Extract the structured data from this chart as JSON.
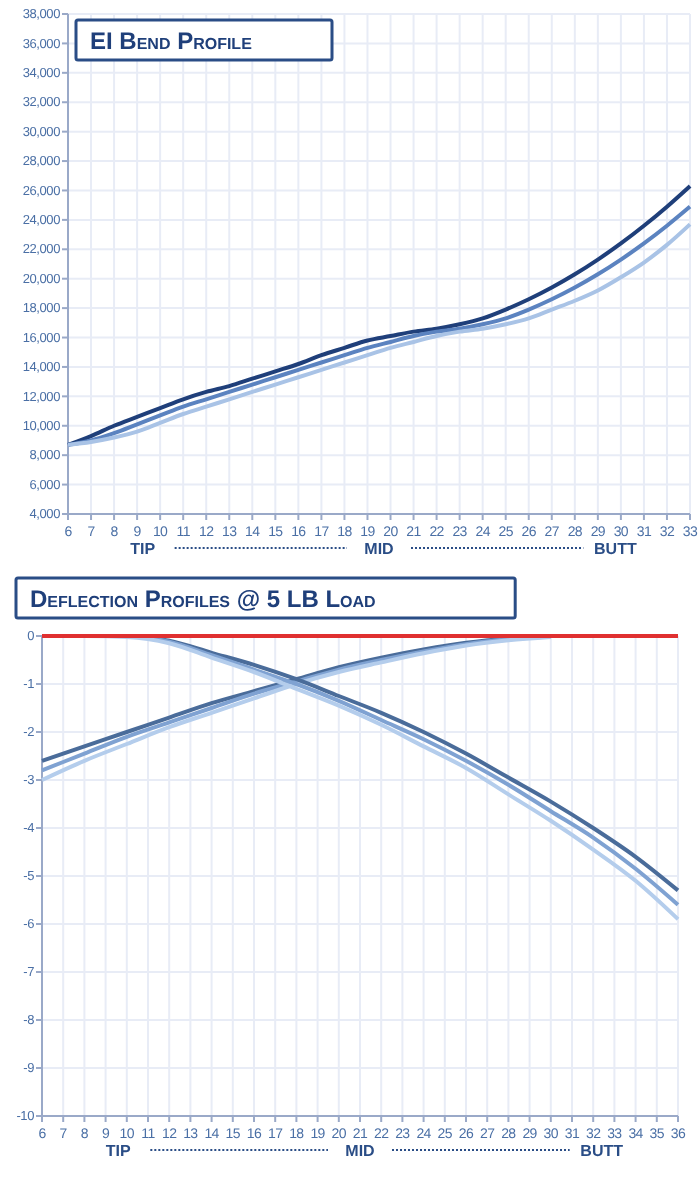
{
  "chart_data": [
    {
      "type": "line",
      "title": "EI Bend Profile",
      "x": [
        6,
        7,
        8,
        9,
        10,
        11,
        12,
        13,
        14,
        15,
        16,
        17,
        18,
        19,
        20,
        21,
        22,
        23,
        24,
        25,
        26,
        27,
        28,
        29,
        30,
        31,
        32,
        33
      ],
      "series": [
        {
          "color": "#1f3f7a",
          "values": [
            8700,
            9300,
            10000,
            10600,
            11200,
            11800,
            12300,
            12700,
            13200,
            13700,
            14200,
            14800,
            15300,
            15800,
            16100,
            16400,
            16600,
            16900,
            17300,
            17900,
            18600,
            19400,
            20300,
            21300,
            22400,
            23600,
            24900,
            26300
          ]
        },
        {
          "color": "#5b83c0",
          "values": [
            8700,
            9000,
            9500,
            10100,
            10700,
            11300,
            11800,
            12300,
            12800,
            13300,
            13800,
            14300,
            14800,
            15300,
            15700,
            16100,
            16400,
            16600,
            16900,
            17300,
            17900,
            18600,
            19400,
            20300,
            21300,
            22400,
            23600,
            24900
          ]
        },
        {
          "color": "#a9c3e6",
          "values": [
            8700,
            8900,
            9200,
            9600,
            10200,
            10800,
            11300,
            11800,
            12300,
            12800,
            13300,
            13800,
            14300,
            14800,
            15300,
            15700,
            16100,
            16400,
            16600,
            16900,
            17300,
            17900,
            18500,
            19200,
            20100,
            21100,
            22300,
            23700
          ]
        }
      ],
      "xlim": [
        6,
        33
      ],
      "xticks": [
        6,
        7,
        8,
        9,
        10,
        11,
        12,
        13,
        14,
        15,
        16,
        17,
        18,
        19,
        20,
        21,
        22,
        23,
        24,
        25,
        26,
        27,
        28,
        29,
        30,
        31,
        32,
        33
      ],
      "ylim": [
        4000,
        38000
      ],
      "yticks": [
        {
          "value": 4000,
          "label": "4,000"
        },
        {
          "value": 6000,
          "label": "6,000"
        },
        {
          "value": 8000,
          "label": "8,000"
        },
        {
          "value": 10000,
          "label": "10,000"
        },
        {
          "value": 12000,
          "label": "12,000"
        },
        {
          "value": 14000,
          "label": "14,000"
        },
        {
          "value": 16000,
          "label": "16,000"
        },
        {
          "value": 18000,
          "label": "18,000"
        },
        {
          "value": 20000,
          "label": "20,000"
        },
        {
          "value": 22000,
          "label": "22,000"
        },
        {
          "value": 24000,
          "label": "24,000"
        },
        {
          "value": 26000,
          "label": "26,000"
        },
        {
          "value": 28000,
          "label": "28,000"
        },
        {
          "value": 30000,
          "label": "30,000"
        },
        {
          "value": 32000,
          "label": "32,000"
        },
        {
          "value": 34000,
          "label": "34,000"
        },
        {
          "value": 36000,
          "label": "36,000"
        },
        {
          "value": 38000,
          "label": "38,000"
        }
      ],
      "grid": true,
      "annotations": [
        "TIP",
        "MID",
        "BUTT"
      ]
    },
    {
      "type": "line",
      "title": "Deflection Profiles @ 5 LB Load",
      "x": [
        6,
        8,
        10,
        12,
        14,
        16,
        18,
        20,
        22,
        24,
        26,
        28,
        30,
        32,
        34,
        36
      ],
      "series": [
        {
          "color": "#4a6c9a",
          "values": [
            -2.6,
            -2.3,
            -2.0,
            -1.7,
            -1.4,
            -1.15,
            -0.9,
            -0.65,
            -0.45,
            -0.28,
            -0.14,
            -0.05,
            0,
            null,
            null,
            null
          ]
        },
        {
          "color": "#7fa2d2",
          "values": [
            -2.8,
            -2.45,
            -2.1,
            -1.8,
            -1.5,
            -1.2,
            -0.95,
            -0.7,
            -0.5,
            -0.32,
            -0.17,
            -0.07,
            -0.01,
            null,
            null,
            null
          ]
        },
        {
          "color": "#b4cdec",
          "values": [
            -3.0,
            -2.6,
            -2.25,
            -1.9,
            -1.6,
            -1.3,
            -1.0,
            -0.75,
            -0.55,
            -0.36,
            -0.2,
            -0.09,
            -0.02,
            null,
            null,
            null
          ]
        },
        {
          "color": "#4a6c9a",
          "values": [
            0,
            0,
            0,
            -0.1,
            -0.35,
            -0.6,
            -0.9,
            -1.25,
            -1.6,
            -2.0,
            -2.45,
            -2.95,
            -3.45,
            -4.0,
            -4.6,
            -5.3
          ]
        },
        {
          "color": "#7fa2d2",
          "values": [
            0,
            0,
            0,
            -0.12,
            -0.4,
            -0.7,
            -1.0,
            -1.35,
            -1.75,
            -2.15,
            -2.6,
            -3.1,
            -3.65,
            -4.2,
            -4.85,
            -5.6
          ]
        },
        {
          "color": "#b4cdec",
          "values": [
            0,
            0,
            -0.02,
            -0.15,
            -0.45,
            -0.75,
            -1.1,
            -1.45,
            -1.85,
            -2.3,
            -2.75,
            -3.3,
            -3.85,
            -4.45,
            -5.1,
            -5.9
          ]
        }
      ],
      "xlim": [
        6,
        36
      ],
      "xticks": [
        6,
        7,
        8,
        9,
        10,
        11,
        12,
        13,
        14,
        15,
        16,
        17,
        18,
        19,
        20,
        21,
        22,
        23,
        24,
        25,
        26,
        27,
        28,
        29,
        30,
        31,
        32,
        33,
        34,
        35,
        36
      ],
      "ylim": [
        -10,
        0
      ],
      "yticks": [
        -10,
        -9,
        -8,
        -7,
        -6,
        -5,
        -4,
        -3,
        -2,
        -1,
        0
      ],
      "grid": true,
      "ref_lines": [
        {
          "axis": "y",
          "value": 0,
          "color": "#e03030"
        }
      ],
      "annotations": [
        "TIP",
        "MID",
        "BUTT"
      ]
    }
  ]
}
